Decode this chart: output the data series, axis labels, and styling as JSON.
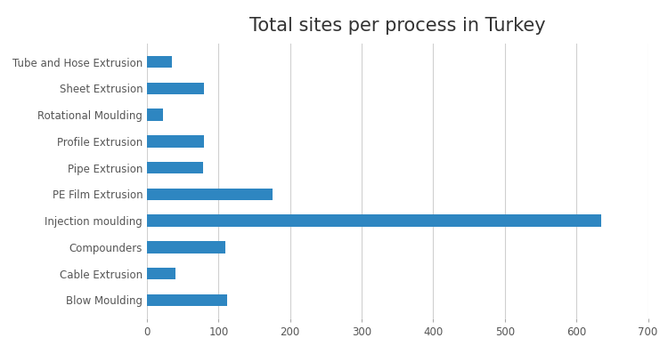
{
  "title": "Total sites per process in Turkey",
  "categories": [
    "Tube and Hose Extrusion",
    "Sheet Extrusion",
    "Rotational Moulding",
    "Profile Extrusion",
    "Pipe Extrusion",
    "PE Film Extrusion",
    "Injection moulding",
    "Compounders",
    "Cable Extrusion",
    "Blow Moulding"
  ],
  "values": [
    35,
    80,
    22,
    80,
    78,
    175,
    635,
    110,
    40,
    112
  ],
  "bar_color": "#2E86C1",
  "xlim": [
    0,
    700
  ],
  "xticks": [
    0,
    100,
    200,
    300,
    400,
    500,
    600,
    700
  ],
  "title_fontsize": 15,
  "tick_fontsize": 8.5,
  "background_color": "#ffffff",
  "grid_color": "#d0d0d0"
}
